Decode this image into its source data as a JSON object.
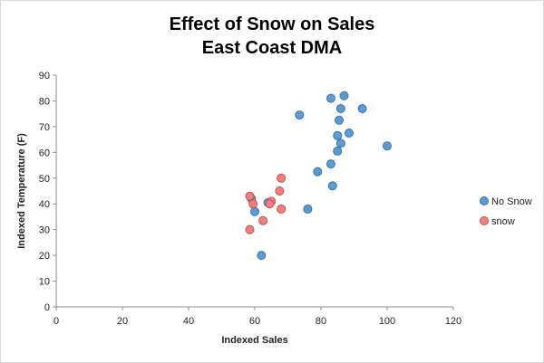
{
  "chart_data": {
    "type": "scatter",
    "title": "Effect of Snow on Sales",
    "subtitle": "East Coast DMA",
    "xlabel": "Indexed Sales",
    "ylabel": "Indexed Temperature (F)",
    "xlim": [
      0,
      120
    ],
    "ylim": [
      0,
      90
    ],
    "xticks": [
      0,
      20,
      40,
      60,
      80,
      100,
      120
    ],
    "yticks": [
      0,
      10,
      20,
      30,
      40,
      50,
      60,
      70,
      80,
      90
    ],
    "grid": false,
    "legend": "right",
    "series": [
      {
        "name": "No Snow",
        "color": "#5b9bd5",
        "points": [
          {
            "x": 83,
            "y": 81
          },
          {
            "x": 87,
            "y": 82
          },
          {
            "x": 86,
            "y": 77
          },
          {
            "x": 92.5,
            "y": 77
          },
          {
            "x": 73.5,
            "y": 74.5
          },
          {
            "x": 85.5,
            "y": 72.5
          },
          {
            "x": 85,
            "y": 66.5
          },
          {
            "x": 88.5,
            "y": 67.5
          },
          {
            "x": 86,
            "y": 63.5
          },
          {
            "x": 85,
            "y": 60.5
          },
          {
            "x": 100,
            "y": 62.5
          },
          {
            "x": 83,
            "y": 55.5
          },
          {
            "x": 79,
            "y": 52.5
          },
          {
            "x": 83.5,
            "y": 47
          },
          {
            "x": 76,
            "y": 38
          },
          {
            "x": 59,
            "y": 42
          },
          {
            "x": 64,
            "y": 40.5
          },
          {
            "x": 60,
            "y": 37
          },
          {
            "x": 62,
            "y": 20
          }
        ]
      },
      {
        "name": "snow",
        "color": "#f08080",
        "points": [
          {
            "x": 68,
            "y": 50
          },
          {
            "x": 67.5,
            "y": 45
          },
          {
            "x": 58.5,
            "y": 43
          },
          {
            "x": 59.5,
            "y": 40
          },
          {
            "x": 65,
            "y": 41
          },
          {
            "x": 64.5,
            "y": 40
          },
          {
            "x": 68,
            "y": 38
          },
          {
            "x": 62.5,
            "y": 33.5
          },
          {
            "x": 58.5,
            "y": 30
          }
        ]
      }
    ]
  }
}
